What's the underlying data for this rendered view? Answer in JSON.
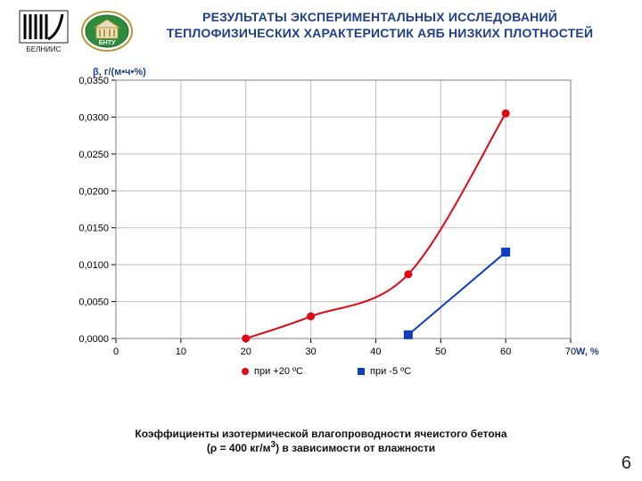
{
  "page_number": "6",
  "logos": {
    "left_caption": "БЕЛНИИС",
    "right_caption": "БНТУ"
  },
  "title": {
    "line1": "РЕЗУЛЬТАТЫ ЭКСПЕРИМЕНТАЛЬНЫХ ИССЛЕДОВАНИЙ",
    "line2": "ТЕПЛОФИЗИЧЕСКИХ ХАРАКТЕРИСТИК АЯБ НИЗКИХ ПЛОТНОСТЕЙ"
  },
  "caption": {
    "line1": "Коэффициенты изотермической влагопроводности ячеистого бетона",
    "rho_value": "400",
    "line2_tail": "в зависимости от влажности"
  },
  "chart": {
    "type": "line",
    "y_axis_label": "β, г/(м•ч•%)",
    "x_axis_label": "W, %",
    "label_color": "#1F3F8A",
    "label_fontsize": 11,
    "tick_fontsize": 11,
    "background_color": "#ffffff",
    "plot_border_color": "#7F7F7F",
    "plot_border_width": 1,
    "grid_color": "#BFBFBF",
    "grid_width": 1,
    "xlim": [
      0,
      70
    ],
    "ylim": [
      0.0,
      0.035
    ],
    "xticks": [
      0,
      10,
      20,
      30,
      40,
      50,
      60,
      70
    ],
    "yticks": [
      0.0,
      0.005,
      0.01,
      0.015,
      0.02,
      0.025,
      0.03,
      0.035
    ],
    "ytick_labels": [
      "0,0000",
      "0,0050",
      "0,0100",
      "0,0150",
      "0,0200",
      "0,0250",
      "0,0300",
      "0,0350"
    ],
    "series": [
      {
        "name": "при +20 ºС",
        "color": "#E30613",
        "marker": "circle",
        "marker_size": 4.5,
        "line_width": 2,
        "x": [
          20,
          30,
          45,
          60
        ],
        "y": [
          0.0,
          0.003,
          0.0087,
          0.0305
        ],
        "smooth": true
      },
      {
        "name": "при -5 ºС",
        "color": "#103CC0",
        "marker": "square",
        "marker_size": 5,
        "line_width": 2,
        "x": [
          45,
          60
        ],
        "y": [
          0.0005,
          0.0117
        ],
        "smooth": false
      }
    ],
    "legend": {
      "position": "bottom",
      "font_size": 11,
      "gap": 90
    }
  }
}
